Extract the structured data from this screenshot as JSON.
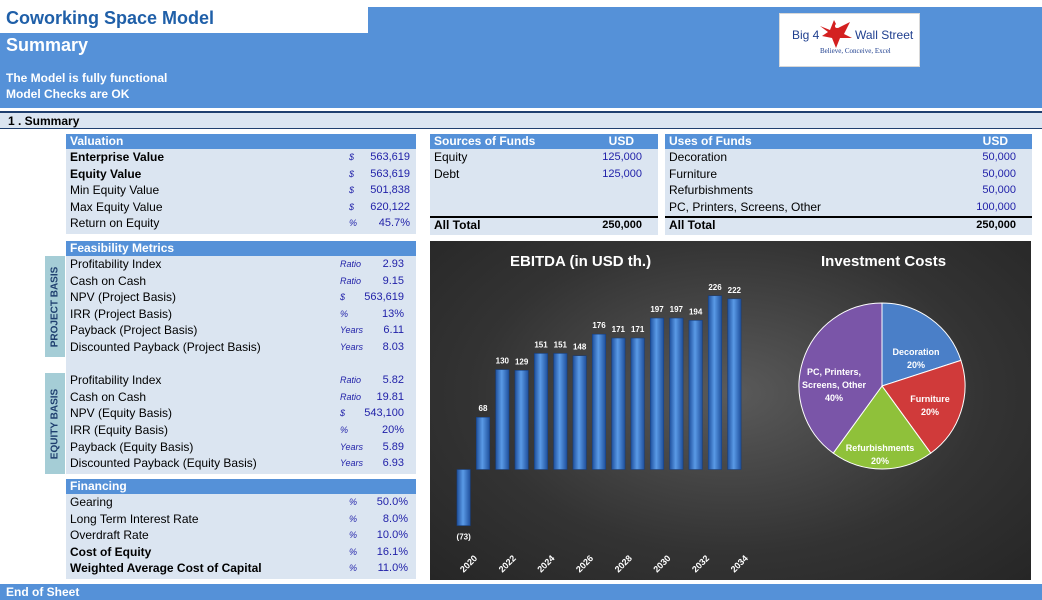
{
  "header": {
    "title": "Coworking Space Model",
    "subtitle": "Summary",
    "status_1": "The Model is fully functional",
    "status_2": "Model Checks are OK",
    "logo_left": "Big 4",
    "logo_right": "Wall Street",
    "logo_tagline": "Believe, Conceive, Excel"
  },
  "section": {
    "label": "1 . Summary"
  },
  "valuation": {
    "header": "Valuation",
    "rows": [
      {
        "label": "Enterprise Value",
        "unit": "$",
        "value": "563,619",
        "bold": true
      },
      {
        "label": "Equity Value",
        "unit": "$",
        "value": "563,619",
        "bold": true
      },
      {
        "label": "Min Equity Value",
        "unit": "$",
        "value": "501,838",
        "bold": false
      },
      {
        "label": "Max Equity Value",
        "unit": "$",
        "value": "620,122",
        "bold": false
      },
      {
        "label": "Return on Equity",
        "unit": "%",
        "value": "45.7%",
        "bold": false
      }
    ]
  },
  "feasibility": {
    "header": "Feasibility Metrics",
    "project_basis_label": "PROJECT BASIS",
    "equity_basis_label": "EQUITY BASIS",
    "project_rows": [
      {
        "label": "Profitability Index",
        "unit": "Ratio",
        "value": "2.93"
      },
      {
        "label": "Cash on Cash",
        "unit": "Ratio",
        "value": "9.15"
      },
      {
        "label": "NPV (Project Basis)",
        "unit": "$",
        "value": "563,619"
      },
      {
        "label": "IRR (Project Basis)",
        "unit": "%",
        "value": "13%"
      },
      {
        "label": "Payback  (Project Basis)",
        "unit": "Years",
        "value": "6.11"
      },
      {
        "label": "Discounted Payback  (Project Basis)",
        "unit": "Years",
        "value": "8.03"
      }
    ],
    "equity_rows": [
      {
        "label": "Profitability Index",
        "unit": "Ratio",
        "value": "5.82"
      },
      {
        "label": "Cash on Cash",
        "unit": "Ratio",
        "value": "19.81"
      },
      {
        "label": "NPV (Equity Basis)",
        "unit": "$",
        "value": "543,100"
      },
      {
        "label": "IRR (Equity Basis)",
        "unit": "%",
        "value": "20%"
      },
      {
        "label": "Payback  (Equity Basis)",
        "unit": "Years",
        "value": "5.89"
      },
      {
        "label": "Discounted Payback  (Equity Basis)",
        "unit": "Years",
        "value": "6.93"
      }
    ]
  },
  "financing": {
    "header": "Financing",
    "rows": [
      {
        "label": "Gearing",
        "unit": "%",
        "value": "50.0%",
        "bold": false
      },
      {
        "label": "Long Term Interest Rate",
        "unit": "%",
        "value": "8.0%",
        "bold": false
      },
      {
        "label": "Overdraft Rate",
        "unit": "%",
        "value": "10.0%",
        "bold": false
      },
      {
        "label": "Cost of Equity",
        "unit": "%",
        "value": "16.1%",
        "bold": true
      },
      {
        "label": "Weighted Average Cost of Capital",
        "unit": "%",
        "value": "11.0%",
        "bold": true
      }
    ]
  },
  "sources": {
    "header": "Sources of Funds",
    "currency": "USD",
    "rows": [
      {
        "label": "Equity",
        "value": "125,000"
      },
      {
        "label": "Debt",
        "value": "125,000"
      }
    ],
    "total_label": "All Total",
    "total_value": "250,000"
  },
  "uses": {
    "header": "Uses of Funds",
    "currency": "USD",
    "rows": [
      {
        "label": "Decoration",
        "value": "50,000"
      },
      {
        "label": "Furniture",
        "value": "50,000"
      },
      {
        "label": "Refurbishments",
        "value": "50,000"
      },
      {
        "label": "PC, Printers, Screens, Other",
        "value": "100,000"
      }
    ],
    "total_label": "All Total",
    "total_value": "250,000"
  },
  "chart_data": [
    {
      "type": "bar",
      "title": "EBITDA (in USD th.)",
      "categories": [
        "2020",
        "2021",
        "2022",
        "2023",
        "2024",
        "2025",
        "2026",
        "2027",
        "2028",
        "2029",
        "2030",
        "2031",
        "2032",
        "2033",
        "2034"
      ],
      "tick_labels": [
        "2020",
        "2022",
        "2024",
        "2026",
        "2028",
        "2030",
        "2032",
        "2034"
      ],
      "values": [
        -73,
        68,
        130,
        129,
        151,
        151,
        148,
        176,
        171,
        171,
        197,
        197,
        194,
        226,
        222
      ],
      "data_labels": [
        "(73)",
        "68",
        "130",
        "129",
        "151",
        "151",
        "148",
        "176",
        "171",
        "171",
        "197",
        "197",
        "194",
        "226",
        "222"
      ],
      "ylim": [
        -80,
        240
      ],
      "color": "#3a7ad0"
    },
    {
      "type": "pie",
      "title": "Investment Costs",
      "slices": [
        {
          "label": "Decoration",
          "pct_label": "20%",
          "value": 20,
          "color": "#4a7fc8"
        },
        {
          "label": "Furniture",
          "pct_label": "20%",
          "value": 20,
          "color": "#d03a3a"
        },
        {
          "label": "Refurbishments",
          "pct_label": "20%",
          "value": 20,
          "color": "#8fc13a"
        },
        {
          "label": "PC, Printers, Screens, Other",
          "label_lines": [
            "PC, Printers,",
            "Screens, Other"
          ],
          "pct_label": "40%",
          "value": 40,
          "color": "#7a55a8"
        }
      ]
    }
  ],
  "footer": {
    "label": "End of Sheet"
  },
  "colors": {
    "header_blue": "#5591d8",
    "panel": "#dbe5f1",
    "title_blue": "#1f5fa8",
    "value_blue": "#1f1fa8"
  }
}
